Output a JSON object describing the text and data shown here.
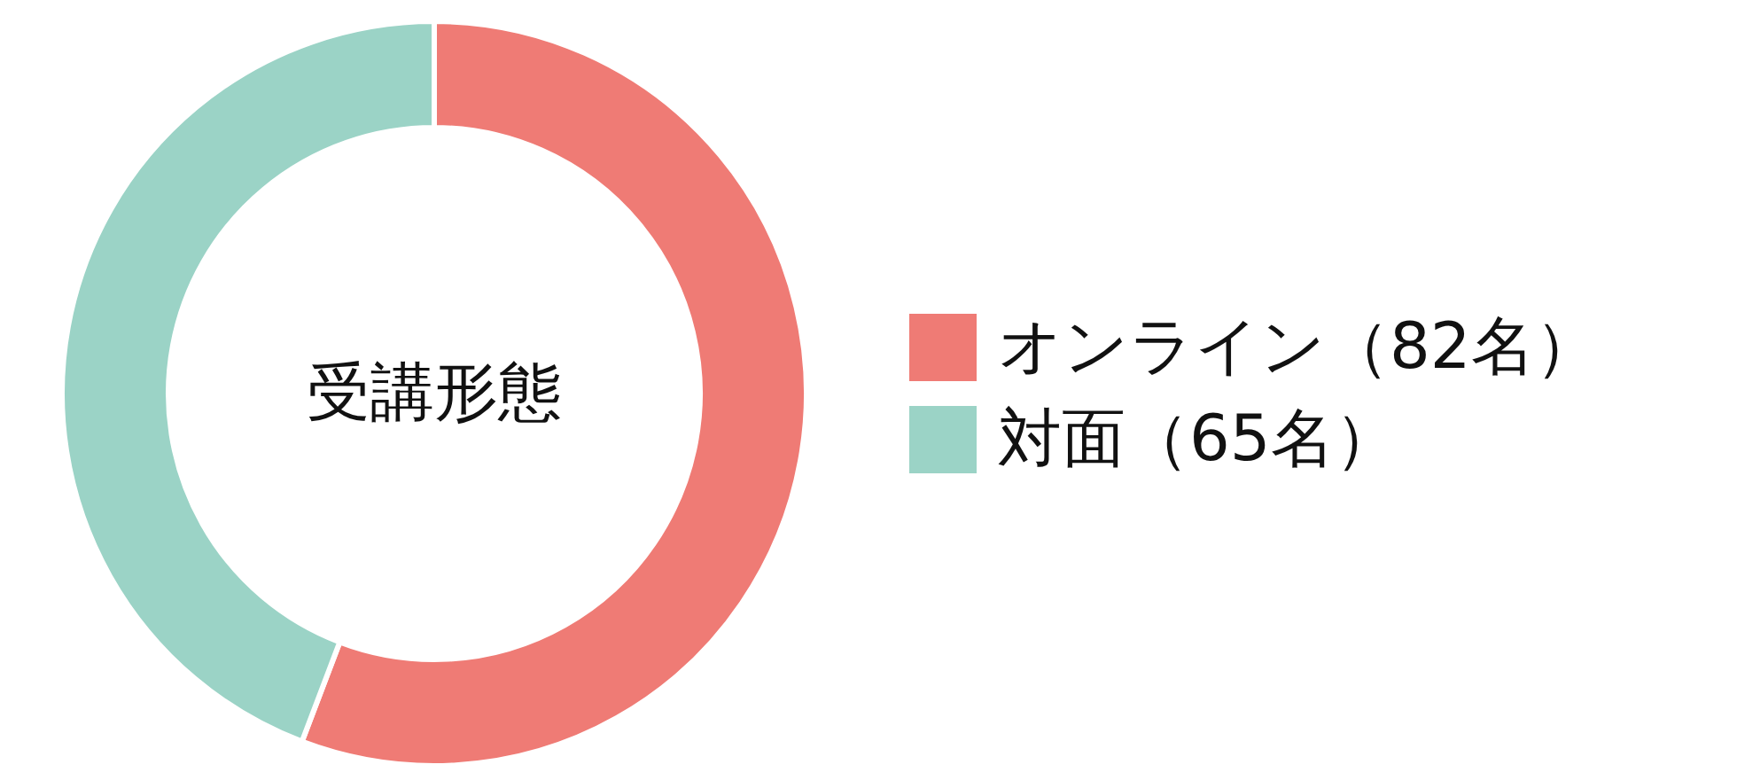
{
  "chart_data": {
    "type": "donut",
    "title": "受講形態",
    "categories": [
      "オンライン（82名）",
      "対面（65名）"
    ],
    "values": [
      82,
      65
    ],
    "colors": [
      "#ef7b75",
      "#9bd3c6"
    ],
    "legend": "right"
  }
}
